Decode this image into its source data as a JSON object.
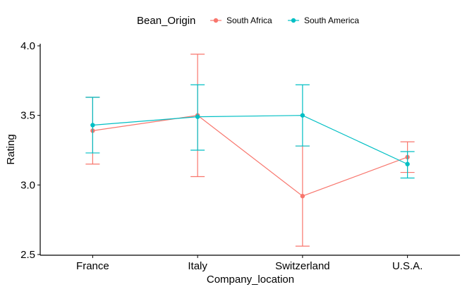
{
  "chart_data": {
    "type": "line",
    "xlabel": "Company_location",
    "ylabel": "Rating",
    "categories": [
      "France",
      "Italy",
      "Switzerland",
      "U.S.A."
    ],
    "ylim": [
      2.5,
      4.0
    ],
    "yticks": [
      2.5,
      3.0,
      3.5,
      4.0
    ],
    "ytick_labels": [
      "2.5",
      "3.0",
      "3.5",
      "4.0"
    ],
    "grid": false,
    "legend": {
      "title": "Bean_Origin",
      "position": "top"
    },
    "series": [
      {
        "name": "South Africa",
        "color": "#F8766D",
        "values": [
          3.39,
          3.5,
          2.92,
          3.2
        ],
        "lower": [
          3.15,
          3.06,
          2.56,
          3.09
        ],
        "upper": [
          3.63,
          3.94,
          3.28,
          3.31
        ]
      },
      {
        "name": "South America",
        "color": "#00BFC4",
        "values": [
          3.43,
          3.49,
          3.5,
          3.15
        ],
        "lower": [
          3.23,
          3.25,
          3.28,
          3.05
        ],
        "upper": [
          3.63,
          3.72,
          3.72,
          3.24
        ]
      }
    ]
  }
}
